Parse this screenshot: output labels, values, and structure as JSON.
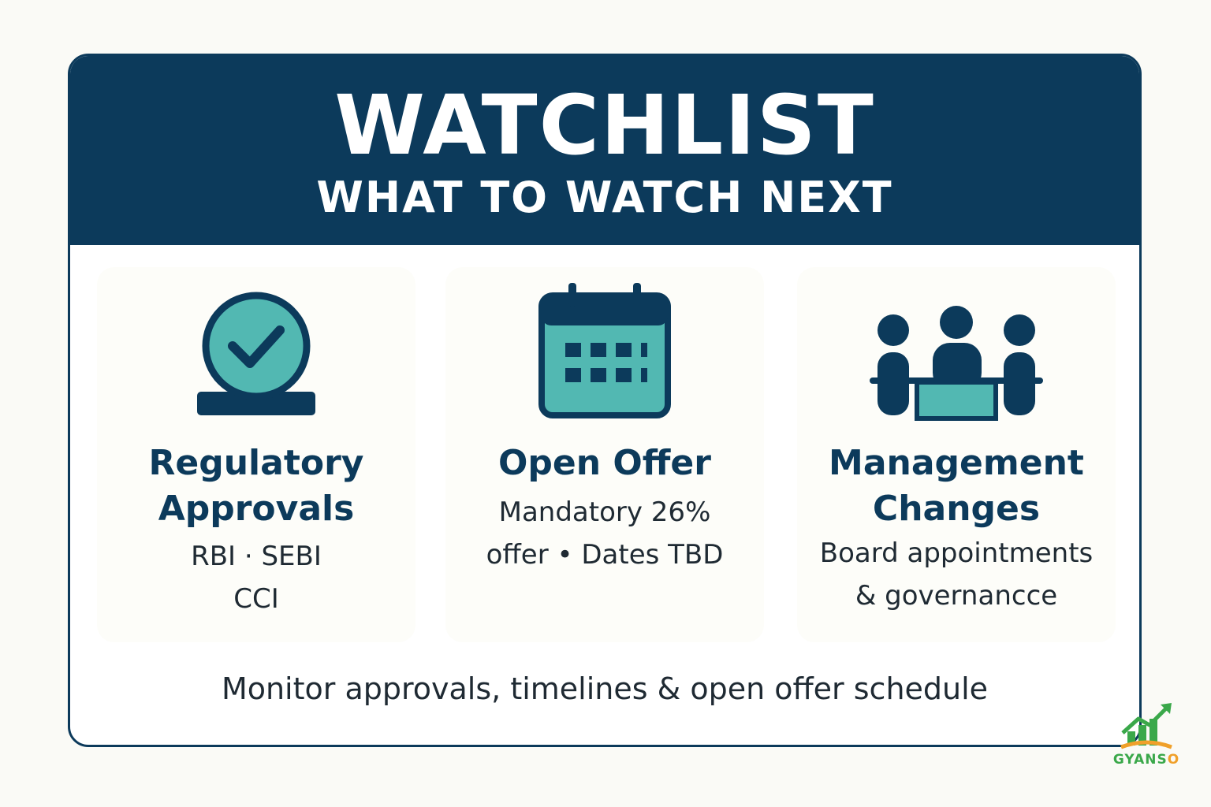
{
  "header": {
    "title": "WATCHLIST",
    "subtitle": "WHAT TO WATCH NEXT"
  },
  "cards": [
    {
      "icon": "approval-check-icon",
      "title_lines": [
        "Regulatory",
        "Approvals"
      ],
      "desc_lines": [
        "RBI · SEBI",
        "CCI"
      ]
    },
    {
      "icon": "calendar-icon",
      "title_lines": [
        "Open Offer"
      ],
      "desc_lines": [
        "Mandatory 26%",
        "offer  •  Dates TBD"
      ]
    },
    {
      "icon": "meeting-people-icon",
      "title_lines": [
        "Management",
        "Changes"
      ],
      "desc_lines": [
        "Board appointments",
        "& governancce"
      ]
    }
  ],
  "footer": {
    "text": "Monitor approvals, timelines & open offer schedule"
  },
  "brand": {
    "name_prefix": "GYANS",
    "name_suffix": "O",
    "logo_icon": "growth-chart-logo-icon"
  },
  "colors": {
    "navy": "#0c3a5b",
    "teal": "#52b8b2",
    "brand_green": "#3aa84a",
    "brand_orange": "#f0a02a"
  }
}
